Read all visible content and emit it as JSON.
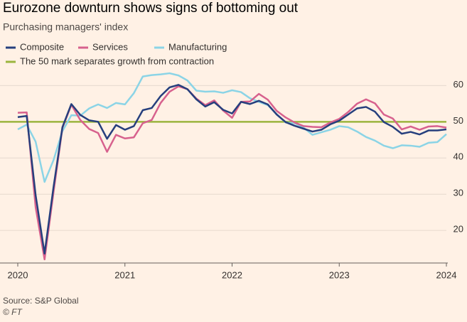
{
  "chart_data": {
    "type": "line",
    "title": "Eurozone downturn shows signs of bottoming out",
    "subtitle": "Purchasing managers' index",
    "source": "Source: S&P Global",
    "credit": "© FT",
    "categories": [
      "2020",
      null,
      null,
      null,
      null,
      null,
      null,
      null,
      null,
      null,
      null,
      null,
      "2021",
      null,
      null,
      null,
      null,
      null,
      null,
      null,
      null,
      null,
      null,
      null,
      "2022",
      null,
      null,
      null,
      null,
      null,
      null,
      null,
      null,
      null,
      null,
      null,
      "2023",
      null,
      null,
      null,
      null,
      null,
      null,
      null,
      null,
      null,
      null,
      null,
      "2024"
    ],
    "series": [
      {
        "name": "Composite",
        "color": "#263f7d",
        "values": [
          51.3,
          51.6,
          29.7,
          13.6,
          31.9,
          48.5,
          54.9,
          51.9,
          50.4,
          50.0,
          45.3,
          49.1,
          47.8,
          48.8,
          53.2,
          53.8,
          57.1,
          59.5,
          60.2,
          59.0,
          56.2,
          54.2,
          55.4,
          53.3,
          52.3,
          55.5,
          54.9,
          55.8,
          54.8,
          52.0,
          49.9,
          48.9,
          48.1,
          47.3,
          47.8,
          49.3,
          50.3,
          52.0,
          53.7,
          54.1,
          52.8,
          49.9,
          48.6,
          46.7,
          47.2,
          46.5,
          47.6,
          47.6,
          47.9
        ]
      },
      {
        "name": "Services",
        "color": "#d7618d",
        "values": [
          52.5,
          52.6,
          26.4,
          12.0,
          30.5,
          48.3,
          54.7,
          50.5,
          48.0,
          46.9,
          41.7,
          46.4,
          45.4,
          45.7,
          49.6,
          50.5,
          55.2,
          58.3,
          59.8,
          59.0,
          56.4,
          54.6,
          55.9,
          53.1,
          51.1,
          55.5,
          55.6,
          57.7,
          56.1,
          53.0,
          51.2,
          49.8,
          48.8,
          48.6,
          48.5,
          49.8,
          50.8,
          52.7,
          55.0,
          56.2,
          55.1,
          52.0,
          50.9,
          47.9,
          48.7,
          47.8,
          48.7,
          48.8,
          48.4
        ]
      },
      {
        "name": "Manufacturing",
        "color": "#8bd4e6",
        "values": [
          47.9,
          49.2,
          44.5,
          33.4,
          39.4,
          47.4,
          51.8,
          51.7,
          53.7,
          54.8,
          53.8,
          55.2,
          54.8,
          57.9,
          62.5,
          62.9,
          63.1,
          63.4,
          62.8,
          61.4,
          58.6,
          58.3,
          58.4,
          58.0,
          58.7,
          58.2,
          56.5,
          55.5,
          54.6,
          52.1,
          49.8,
          49.6,
          48.4,
          46.4,
          47.1,
          47.8,
          48.8,
          48.5,
          47.3,
          45.8,
          44.8,
          43.4,
          42.7,
          43.5,
          43.4,
          43.1,
          44.2,
          44.4,
          46.6
        ]
      }
    ],
    "reference_line": {
      "value": 50,
      "label": "The 50 mark separates growth from contraction",
      "color": "#9bb53e"
    },
    "ylim": [
      11,
      64
    ],
    "yticks": [
      20,
      30,
      40,
      50,
      60
    ],
    "grid": true
  }
}
